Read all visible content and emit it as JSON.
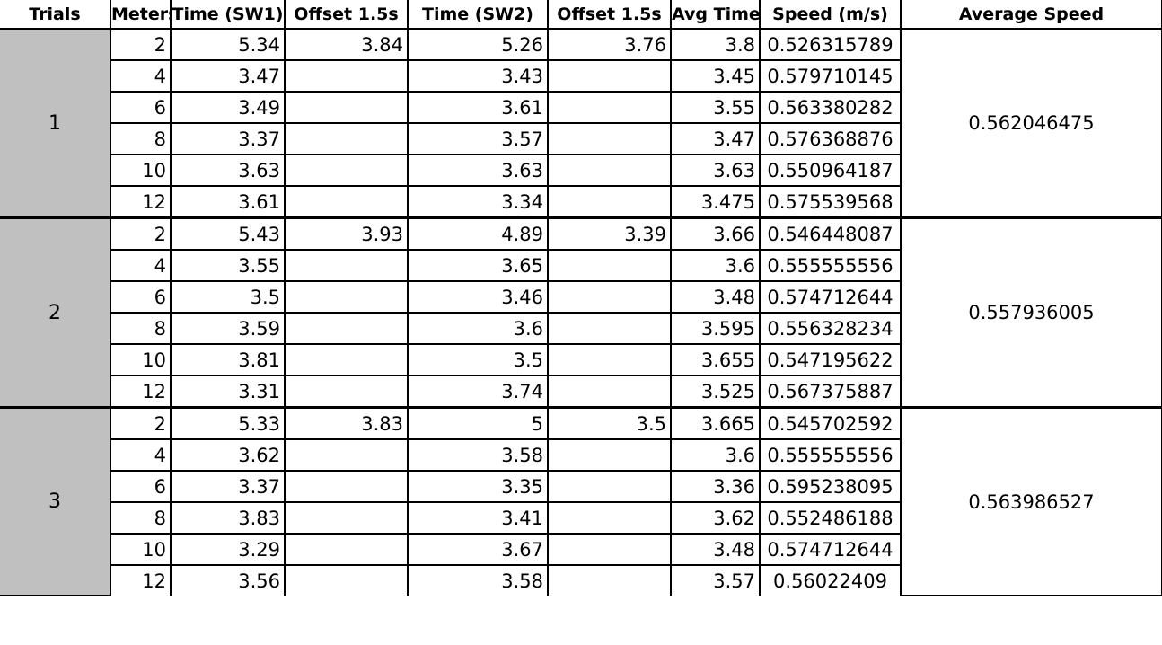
{
  "headers": [
    "Trials",
    "Meters",
    "Time (SW1)",
    "Offset 1.5s",
    "Time (SW2)",
    "Offset 1.5s",
    "Avg Time",
    "Speed (m/s)",
    "Average Speed"
  ],
  "trials": [
    {
      "trial": "1",
      "average_speed": "0.562046475",
      "rows": [
        {
          "meters": "2",
          "sw1": "5.34",
          "off1": "3.84",
          "sw2": "5.26",
          "off2": "3.76",
          "avg": "3.8",
          "speed": "0.526315789"
        },
        {
          "meters": "4",
          "sw1": "3.47",
          "off1": "",
          "sw2": "3.43",
          "off2": "",
          "avg": "3.45",
          "speed": "0.579710145"
        },
        {
          "meters": "6",
          "sw1": "3.49",
          "off1": "",
          "sw2": "3.61",
          "off2": "",
          "avg": "3.55",
          "speed": "0.563380282"
        },
        {
          "meters": "8",
          "sw1": "3.37",
          "off1": "",
          "sw2": "3.57",
          "off2": "",
          "avg": "3.47",
          "speed": "0.576368876"
        },
        {
          "meters": "10",
          "sw1": "3.63",
          "off1": "",
          "sw2": "3.63",
          "off2": "",
          "avg": "3.63",
          "speed": "0.550964187"
        },
        {
          "meters": "12",
          "sw1": "3.61",
          "off1": "",
          "sw2": "3.34",
          "off2": "",
          "avg": "3.475",
          "speed": "0.575539568"
        }
      ]
    },
    {
      "trial": "2",
      "average_speed": "0.557936005",
      "rows": [
        {
          "meters": "2",
          "sw1": "5.43",
          "off1": "3.93",
          "sw2": "4.89",
          "off2": "3.39",
          "avg": "3.66",
          "speed": "0.546448087"
        },
        {
          "meters": "4",
          "sw1": "3.55",
          "off1": "",
          "sw2": "3.65",
          "off2": "",
          "avg": "3.6",
          "speed": "0.555555556"
        },
        {
          "meters": "6",
          "sw1": "3.5",
          "off1": "",
          "sw2": "3.46",
          "off2": "",
          "avg": "3.48",
          "speed": "0.574712644"
        },
        {
          "meters": "8",
          "sw1": "3.59",
          "off1": "",
          "sw2": "3.6",
          "off2": "",
          "avg": "3.595",
          "speed": "0.556328234"
        },
        {
          "meters": "10",
          "sw1": "3.81",
          "off1": "",
          "sw2": "3.5",
          "off2": "",
          "avg": "3.655",
          "speed": "0.547195622"
        },
        {
          "meters": "12",
          "sw1": "3.31",
          "off1": "",
          "sw2": "3.74",
          "off2": "",
          "avg": "3.525",
          "speed": "0.567375887"
        }
      ]
    },
    {
      "trial": "3",
      "average_speed": "0.563986527",
      "rows": [
        {
          "meters": "2",
          "sw1": "5.33",
          "off1": "3.83",
          "sw2": "5",
          "off2": "3.5",
          "avg": "3.665",
          "speed": "0.545702592"
        },
        {
          "meters": "4",
          "sw1": "3.62",
          "off1": "",
          "sw2": "3.58",
          "off2": "",
          "avg": "3.6",
          "speed": "0.555555556"
        },
        {
          "meters": "6",
          "sw1": "3.37",
          "off1": "",
          "sw2": "3.35",
          "off2": "",
          "avg": "3.36",
          "speed": "0.595238095"
        },
        {
          "meters": "8",
          "sw1": "3.83",
          "off1": "",
          "sw2": "3.41",
          "off2": "",
          "avg": "3.62",
          "speed": "0.552486188"
        },
        {
          "meters": "10",
          "sw1": "3.29",
          "off1": "",
          "sw2": "3.67",
          "off2": "",
          "avg": "3.48",
          "speed": "0.574712644"
        },
        {
          "meters": "12",
          "sw1": "3.56",
          "off1": "",
          "sw2": "3.58",
          "off2": "",
          "avg": "3.57",
          "speed": "0.56022409"
        }
      ]
    }
  ],
  "colors": {
    "trial_cell_background": "#c0c0c0",
    "grid": "#000000"
  }
}
